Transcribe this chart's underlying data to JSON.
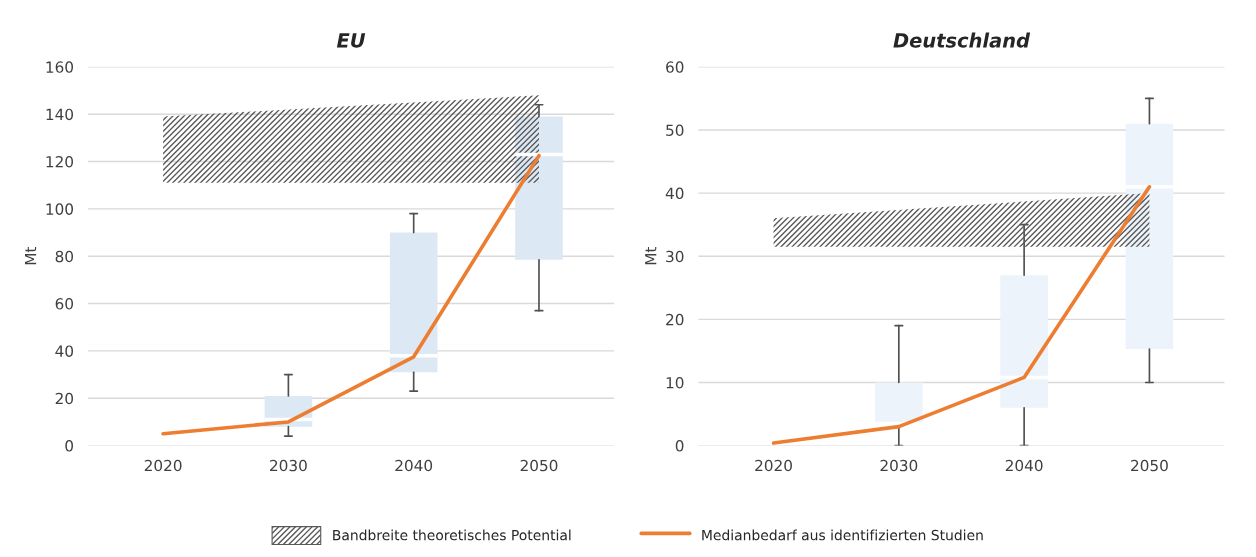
{
  "chart_data": [
    {
      "type": "box",
      "title": "EU",
      "ylabel": "Mt",
      "categories": [
        "2020",
        "2030",
        "2040",
        "2050"
      ],
      "ylim": [
        0,
        160
      ],
      "yticks": [
        0,
        20,
        40,
        60,
        80,
        100,
        120,
        140,
        160
      ],
      "grid": "y",
      "legend": "bottom",
      "color": "#dce9f5",
      "boxes": [
        null,
        {
          "low": 4,
          "q1": 8,
          "median": 11,
          "q3": 21,
          "high": 30
        },
        {
          "low": 23,
          "q1": 31,
          "median": 38,
          "q3": 90,
          "high": 98
        },
        {
          "low": 57,
          "q1": 78.5,
          "median": 123,
          "q3": 139,
          "high": 144
        }
      ],
      "series": [
        {
          "type": "area",
          "name": "Bandbreite theoretisches Potential",
          "color": "#595959",
          "values": [
            null,
            null,
            null,
            null
          ],
          "lower": [
            111,
            null,
            null,
            111
          ],
          "upper": [
            139,
            null,
            null,
            148
          ]
        },
        {
          "type": "line",
          "name": "Medianbedarf aus identifizierten Studien",
          "color": "#ed7d31",
          "values": [
            5,
            10,
            37.5,
            122.5
          ]
        }
      ]
    },
    {
      "type": "box",
      "title": "Deutschland",
      "ylabel": "Mt",
      "categories": [
        "2020",
        "2030",
        "2040",
        "2050"
      ],
      "ylim": [
        0,
        60
      ],
      "yticks": [
        0,
        10,
        20,
        30,
        40,
        50,
        60
      ],
      "grid": "y",
      "color": "#edf3fa",
      "boxes": [
        null,
        {
          "low": 0,
          "q1": 3.5,
          "median": 3.5,
          "q3": 10,
          "high": 19
        },
        {
          "low": 0,
          "q1": 6,
          "median": 10.8,
          "q3": 27,
          "high": 35
        },
        {
          "low": 10,
          "q1": 15.3,
          "median": 41,
          "q3": 51,
          "high": 55
        }
      ],
      "series": [
        {
          "type": "area",
          "color": "#595959",
          "values": [
            null,
            null,
            null,
            null
          ],
          "lower": [
            31.5,
            null,
            null,
            31.5
          ],
          "upper": [
            36,
            null,
            null,
            40
          ]
        },
        {
          "type": "line",
          "color": "#ed7d31",
          "values": [
            0.4,
            3,
            10.8,
            41
          ]
        }
      ]
    }
  ]
}
